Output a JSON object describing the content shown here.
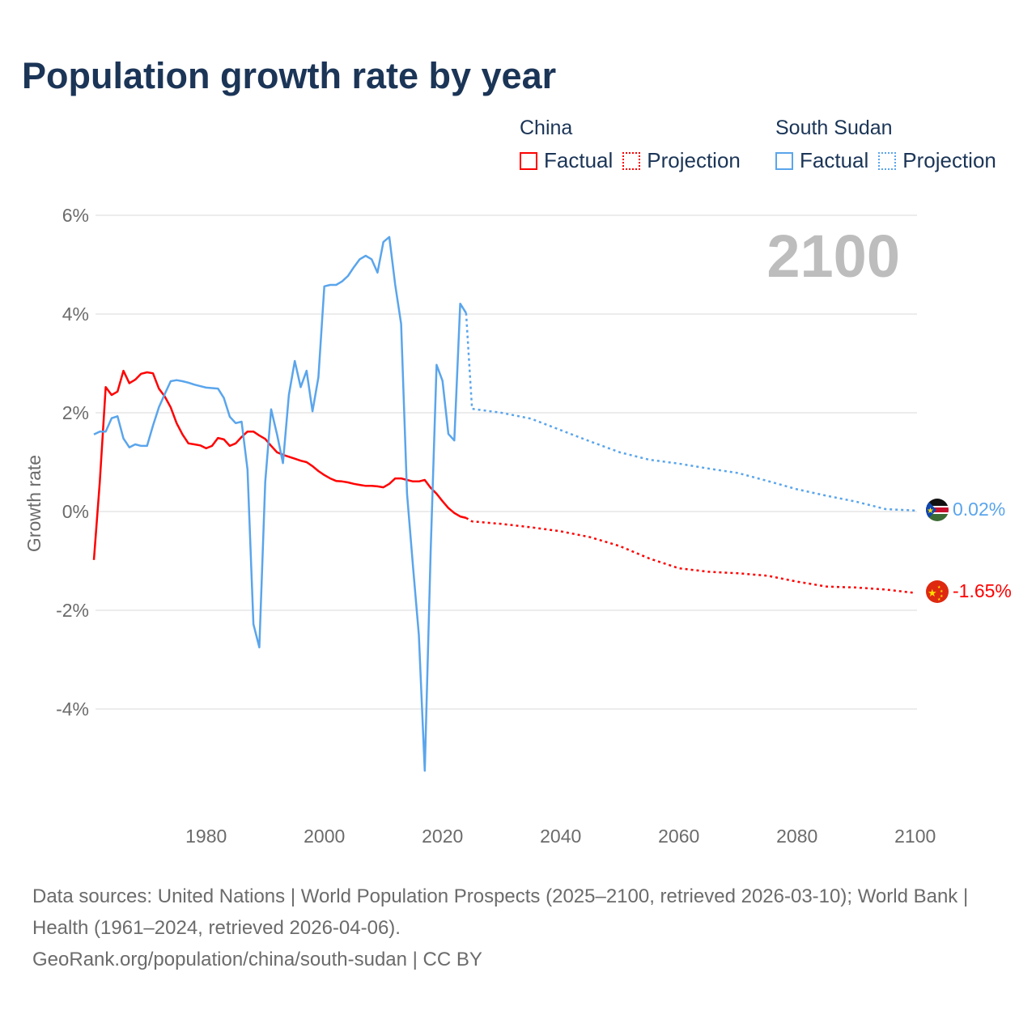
{
  "title": "Population growth rate by year",
  "legend": {
    "groups": [
      {
        "name": "China",
        "color": "#ff0000",
        "factual": "Factual",
        "projection": "Projection"
      },
      {
        "name": "South Sudan",
        "color": "#5aa5ec",
        "factual": "Factual",
        "projection": "Projection"
      }
    ]
  },
  "year_display": "2100",
  "footer": {
    "line1": "Data sources: United Nations | World Population Prospects (2025–2100, retrieved 2026-03-10); World Bank | Health (1961–2024, retrieved 2026-04-06).",
    "line2": "GeoRank.org/population/china/south-sudan | CC BY"
  },
  "chart_data": {
    "type": "line",
    "title": "Population growth rate by year",
    "xlabel": "",
    "ylabel": "Growth rate",
    "xlim": [
      1961,
      2100
    ],
    "ylim": [
      -5.5,
      6.2
    ],
    "x_ticks": [
      1980,
      2000,
      2020,
      2040,
      2060,
      2080,
      2100
    ],
    "y_ticks": [
      6,
      4,
      2,
      0,
      -2,
      -4
    ],
    "y_tick_labels": [
      "6%",
      "4%",
      "2%",
      "0%",
      "-2%",
      "-4%"
    ],
    "grid": true,
    "series": [
      {
        "name": "China",
        "color": "#ff0000",
        "end_label": "-1.65%",
        "flag": "china-flag",
        "factual": {
          "x": [
            1961,
            1962,
            1963,
            1964,
            1965,
            1966,
            1967,
            1968,
            1969,
            1970,
            1971,
            1972,
            1973,
            1974,
            1975,
            1976,
            1977,
            1978,
            1979,
            1980,
            1981,
            1982,
            1983,
            1984,
            1985,
            1986,
            1987,
            1988,
            1989,
            1990,
            1991,
            1992,
            1993,
            1994,
            1995,
            1996,
            1997,
            1998,
            1999,
            2000,
            2001,
            2002,
            2003,
            2004,
            2005,
            2006,
            2007,
            2008,
            2009,
            2010,
            2011,
            2012,
            2013,
            2014,
            2015,
            2016,
            2017,
            2018,
            2019,
            2020,
            2021,
            2022,
            2023,
            2024
          ],
          "y": [
            -0.98,
            0.6,
            2.52,
            2.36,
            2.43,
            2.85,
            2.6,
            2.67,
            2.79,
            2.82,
            2.8,
            2.49,
            2.33,
            2.11,
            1.79,
            1.56,
            1.38,
            1.36,
            1.34,
            1.28,
            1.33,
            1.49,
            1.46,
            1.33,
            1.38,
            1.51,
            1.62,
            1.62,
            1.54,
            1.47,
            1.33,
            1.2,
            1.15,
            1.11,
            1.07,
            1.03,
            1.0,
            0.92,
            0.82,
            0.74,
            0.67,
            0.62,
            0.61,
            0.59,
            0.56,
            0.54,
            0.52,
            0.52,
            0.51,
            0.49,
            0.56,
            0.67,
            0.67,
            0.64,
            0.61,
            0.61,
            0.64,
            0.48,
            0.36,
            0.21,
            0.07,
            -0.03,
            -0.1,
            -0.13
          ]
        },
        "projection": {
          "x": [
            2024,
            2025,
            2030,
            2035,
            2040,
            2045,
            2050,
            2055,
            2060,
            2065,
            2070,
            2075,
            2080,
            2085,
            2090,
            2095,
            2100
          ],
          "y": [
            -0.13,
            -0.2,
            -0.25,
            -0.32,
            -0.4,
            -0.52,
            -0.7,
            -0.95,
            -1.15,
            -1.22,
            -1.25,
            -1.3,
            -1.42,
            -1.52,
            -1.54,
            -1.58,
            -1.65
          ]
        }
      },
      {
        "name": "South Sudan",
        "color": "#5aa5ec",
        "end_label": "0.02%",
        "flag": "south-sudan-flag",
        "factual": {
          "x": [
            1961,
            1962,
            1963,
            1964,
            1965,
            1966,
            1967,
            1968,
            1969,
            1970,
            1971,
            1972,
            1973,
            1974,
            1975,
            1976,
            1977,
            1978,
            1979,
            1980,
            1981,
            1982,
            1983,
            1984,
            1985,
            1986,
            1987,
            1988,
            1989,
            1990,
            1991,
            1992,
            1993,
            1994,
            1995,
            1996,
            1997,
            1998,
            1999,
            2000,
            2001,
            2002,
            2003,
            2004,
            2005,
            2006,
            2007,
            2008,
            2009,
            2010,
            2011,
            2012,
            2013,
            2014,
            2015,
            2016,
            2017,
            2018,
            2019,
            2020,
            2021,
            2022,
            2023,
            2024
          ],
          "y": [
            1.56,
            1.62,
            1.62,
            1.89,
            1.93,
            1.48,
            1.3,
            1.36,
            1.33,
            1.33,
            1.74,
            2.11,
            2.38,
            2.64,
            2.66,
            2.64,
            2.61,
            2.57,
            2.54,
            2.51,
            2.5,
            2.49,
            2.3,
            1.92,
            1.79,
            1.82,
            0.85,
            -2.28,
            -2.75,
            0.6,
            2.07,
            1.56,
            0.98,
            2.36,
            3.05,
            2.52,
            2.85,
            2.03,
            2.72,
            4.56,
            4.59,
            4.59,
            4.66,
            4.77,
            4.95,
            5.11,
            5.18,
            5.11,
            4.84,
            5.46,
            5.56,
            4.59,
            3.8,
            0.36,
            -1.1,
            -2.5,
            -5.25,
            -0.8,
            2.97,
            2.65,
            1.57,
            1.44,
            4.21,
            4.02
          ]
        },
        "projection": {
          "x": [
            2024,
            2025,
            2030,
            2035,
            2040,
            2045,
            2050,
            2055,
            2060,
            2065,
            2070,
            2075,
            2080,
            2085,
            2090,
            2095,
            2100
          ],
          "y": [
            4.02,
            2.08,
            2.0,
            1.88,
            1.65,
            1.42,
            1.2,
            1.05,
            0.97,
            0.87,
            0.78,
            0.62,
            0.45,
            0.32,
            0.2,
            0.05,
            0.02
          ]
        }
      }
    ]
  }
}
